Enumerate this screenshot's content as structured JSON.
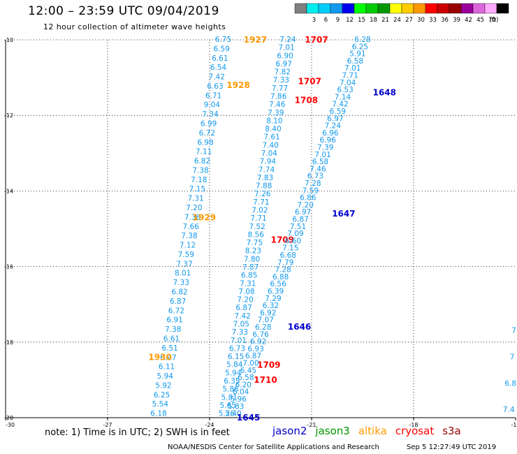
{
  "title": "12:00 – 23:59 UTC 09/04/2019",
  "subtitle": "12 hour collection of altimeter wave heights",
  "footer": {
    "note": "note: 1) Time is in UTC; 2) SWH is in feet",
    "credit": "NOAA/NESDIS Center for Satellite Applications and Research",
    "stamp": "Sep  5 12:27:49 UTC 2019"
  },
  "chart_data": {
    "type": "scatter",
    "title": "12:00 – 23:59 UTC 09/04/2019",
    "subtitle": "12 hour collection of altimeter wave heights",
    "xlim": [
      -30,
      -15
    ],
    "ylim": [
      -20,
      -10
    ],
    "x_ticks": [
      -30,
      -27,
      -24,
      -21,
      -18,
      -15
    ],
    "y_ticks": [
      -10,
      -12,
      -14,
      -16,
      -18,
      -20
    ],
    "x_tick_labels": [
      "-30",
      "-27",
      "-24",
      "-21",
      "-18",
      "-15"
    ],
    "y_tick_labels": [
      "-10",
      "-12",
      "-14",
      "-16",
      "-18",
      "-20"
    ],
    "grid": true,
    "color_scale": {
      "unit": "(ft)",
      "bins": [
        {
          "label": "",
          "color": "#808080"
        },
        {
          "label": "3",
          "color": "#00eeee"
        },
        {
          "label": "6",
          "color": "#00ccff"
        },
        {
          "label": "9",
          "color": "#1199ee"
        },
        {
          "label": "12",
          "color": "#0000ee"
        },
        {
          "label": "15",
          "color": "#00ff00"
        },
        {
          "label": "18",
          "color": "#00cc00"
        },
        {
          "label": "21",
          "color": "#009900"
        },
        {
          "label": "24",
          "color": "#ffff00"
        },
        {
          "label": "27",
          "color": "#ffcc00"
        },
        {
          "label": "30",
          "color": "#ff9900"
        },
        {
          "label": "33",
          "color": "#ff0000"
        },
        {
          "label": "36",
          "color": "#cc0000"
        },
        {
          "label": "39",
          "color": "#990000"
        },
        {
          "label": "42",
          "color": "#990099"
        },
        {
          "label": "45",
          "color": "#dd66dd"
        },
        {
          "label": "70",
          "color": "#ffaaff"
        },
        {
          "label": "",
          "color": "#000000"
        }
      ]
    },
    "satellites": [
      {
        "name": "jason2",
        "color": "#0000cc"
      },
      {
        "name": "jason3",
        "color": "#009900"
      },
      {
        "name": "altika",
        "color": "#ff9900"
      },
      {
        "name": "cryosat",
        "color": "#ff0000"
      },
      {
        "name": "s3a",
        "color": "#990000"
      }
    ],
    "tracks": [
      {
        "start": [
          -23.6,
          -10.0
        ],
        "end": [
          -25.5,
          -19.9
        ],
        "color": "#1199ee",
        "values": [
          "6.75",
          "6.59",
          "6.61",
          "6.54",
          "7.42",
          "6.63",
          "6.71",
          "9.04",
          "7.34",
          "6.99",
          "6.72",
          "6.98",
          "7.11",
          "6.82",
          "7.38",
          "7.18",
          "7.15",
          "7.31",
          "7.20",
          "7.36",
          "7.66",
          "7.38",
          "7.12",
          "7.59",
          "7.37",
          "8.01",
          "7.33",
          "6.82",
          "6.87",
          "6.72",
          "6.91",
          "7.38",
          "6.61",
          "6.51",
          "6.47",
          "6.11",
          "5.94",
          "5.92",
          "6.25",
          "5.54",
          "6.18"
        ],
        "time_labels": [
          {
            "text": "1927",
            "x": -23.0,
            "y": -10.0,
            "color": "#ff9900"
          },
          {
            "text": "1928",
            "x": -23.5,
            "y": -11.2,
            "color": "#ff9900"
          },
          {
            "text": "1929",
            "x": -24.5,
            "y": -14.7,
            "color": "#ff9900"
          },
          {
            "text": "1930",
            "x": -25.8,
            "y": -18.4,
            "color": "#ff9900"
          }
        ]
      },
      {
        "start": [
          -21.7,
          -10.0
        ],
        "end": [
          -23.5,
          -19.9
        ],
        "color": "#1199ee",
        "values": [
          "7.24",
          "7.01",
          "6.90",
          "6.97",
          "7.82",
          "7.33",
          "7.77",
          "7.86",
          "7.46",
          "7.39",
          "8.10",
          "8.40",
          "7.61",
          "7.40",
          "7.04",
          "7.94",
          "7.74",
          "7.83",
          "7.88",
          "7.26",
          "7.71",
          "7.02",
          "7.71",
          "7.52",
          "8.56",
          "7.75",
          "8.23",
          "7.80",
          "7.87",
          "6.85",
          "7.31",
          "7.08",
          "7.20",
          "6.87",
          "7.42",
          "7.05",
          "7.33",
          "7.01",
          "6.73",
          "6.15",
          "5.84",
          "5.94",
          "6.35",
          "5.86",
          "5.81",
          "5.65",
          "5.26"
        ],
        "time_labels": [
          {
            "text": "1707",
            "x": -21.2,
            "y": -10.0,
            "color": "#ff0000"
          },
          {
            "text": "1707",
            "x": -21.4,
            "y": -11.1,
            "color": "#ff0000"
          },
          {
            "text": "1708",
            "x": -21.5,
            "y": -11.6,
            "color": "#ff0000"
          },
          {
            "text": "1709",
            "x": -22.2,
            "y": -15.3,
            "color": "#ff0000"
          },
          {
            "text": "1709",
            "x": -22.6,
            "y": -18.6,
            "color": "#ff0000"
          },
          {
            "text": "1710",
            "x": -22.7,
            "y": -19.0,
            "color": "#ff0000"
          }
        ]
      },
      {
        "start": [
          -19.5,
          -10.0
        ],
        "end": [
          -23.3,
          -19.9
        ],
        "color": "#1199ee",
        "values": [
          "6.28",
          "6.25",
          "5.91",
          "6.58",
          "7.01",
          "7.71",
          "7.04",
          "6.53",
          "7.14",
          "7.42",
          "6.59",
          "6.97",
          "7.24",
          "6.96",
          "6.96",
          "7.39",
          "7.01",
          "6.58",
          "7.46",
          "6.73",
          "7.28",
          "7.59",
          "6.86",
          "7.20",
          "6.97",
          "6.87",
          "7.51",
          "7.09",
          "6.60",
          "7.15",
          "6.68",
          "7.79",
          "7.28",
          "6.88",
          "6.56",
          "6.39",
          "7.29",
          "6.32",
          "6.92",
          "7.07",
          "6.28",
          "6.76",
          "6.92",
          "6.93",
          "6.87",
          "7.00",
          "6.45",
          "6.58",
          "6.20",
          "6.04",
          "5.96",
          "5.83",
          "5.40"
        ],
        "time_labels": [
          {
            "text": "1648",
            "x": -19.2,
            "y": -11.4,
            "color": "#0000cc"
          },
          {
            "text": "1647",
            "x": -20.4,
            "y": -14.6,
            "color": "#0000cc"
          },
          {
            "text": "1646",
            "x": -21.7,
            "y": -17.6,
            "color": "#0000cc"
          },
          {
            "text": "1645",
            "x": -23.2,
            "y": -20.0,
            "color": "#0000cc"
          }
        ]
      },
      {
        "start": [
          -15.05,
          -17.7
        ],
        "end": [
          -15.2,
          -19.8
        ],
        "color": "#1199ee",
        "values": [
          "7",
          "7",
          "6.8",
          "7.4"
        ],
        "time_labels": []
      }
    ]
  }
}
